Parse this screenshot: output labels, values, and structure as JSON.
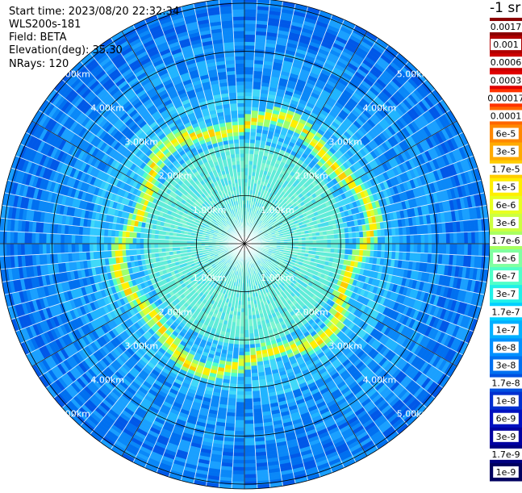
{
  "info": {
    "start_time": "Start time: 2023/08/20 22:32:34",
    "instrument": "WLS200s-181",
    "field": "Field: BETA",
    "elevation": "Elevation(deg): 35.30",
    "nrays": "NRays: 120"
  },
  "colorbar": {
    "unit": "-1 sr",
    "labels": [
      "0.0017",
      "0.001",
      "0.0006",
      "0.0003",
      "0.00017",
      "0.0001",
      "6e-5",
      "3e-5",
      "1.7e-5",
      "1e-5",
      "6e-6",
      "3e-6",
      "1.7e-6",
      "1e-6",
      "6e-7",
      "3e-7",
      "1.7e-7",
      "1e-7",
      "6e-8",
      "3e-8",
      "1.7e-8",
      "1e-8",
      "6e-9",
      "3e-9",
      "1.7e-9",
      "1e-9"
    ],
    "colors": [
      "#8b0000",
      "#b00000",
      "#cc0000",
      "#e00000",
      "#ff3300",
      "#ff6600",
      "#ff8800",
      "#ffaa00",
      "#ffcc00",
      "#ffee00",
      "#e8ff20",
      "#ccff40",
      "#a8ff60",
      "#80ffa0",
      "#50ffc8",
      "#20f0e8",
      "#00d0ff",
      "#00b0ff",
      "#0090ff",
      "#0070f0",
      "#0050e0",
      "#0030d0",
      "#0010c0",
      "#0000a0",
      "#000080",
      "#000060"
    ]
  },
  "chart_data": {
    "type": "heatmap",
    "projection": "polar-ppi",
    "n_rays": 120,
    "range_rings_km": [
      1,
      2,
      3,
      4,
      5
    ],
    "ring_labels": [
      "1.00km",
      "2.00km",
      "3.00km",
      "4.00km",
      "5.00km"
    ],
    "spoke_angles_deg": [
      0,
      30,
      60,
      90,
      120,
      150,
      180,
      210,
      240,
      270,
      300,
      330
    ],
    "aerosol_layer_ring_km": 2.5,
    "max_range_km": 5.1,
    "field": "BETA",
    "colorscale": "log10, 1e-9 to 0.0017 sr-1"
  }
}
